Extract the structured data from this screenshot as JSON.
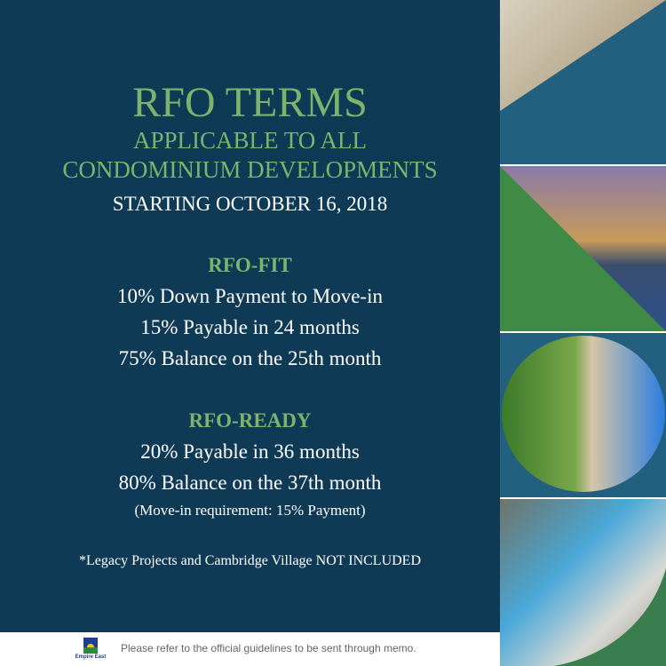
{
  "header": {
    "title": "RFO TERMS",
    "subtitle_1": "APPLICABLE TO ALL",
    "subtitle_2": "CONDOMINIUM DEVELOPMENTS",
    "start": "STARTING OCTOBER 16, 2018"
  },
  "rfo_fit": {
    "title": "RFO-FIT",
    "lines": [
      "10% Down Payment to Move-in",
      "15% Payable in 24 months",
      "75% Balance on the 25th month"
    ]
  },
  "rfo_ready": {
    "title": "RFO-READY",
    "lines": [
      "20% Payable in 36 months",
      "80% Balance on the 37th month"
    ],
    "note": "(Move-in requirement: 15% Payment)"
  },
  "disclaimer": "*Legacy Projects and Cambridge Village NOT INCLUDED",
  "footer": {
    "logo_text": "Empire East",
    "note": "Please refer to the official guidelines to be sent through memo."
  },
  "colors": {
    "navy": "#0f3a56",
    "green": "#7db46c",
    "panel_blue": "#236080",
    "panel_green": "#3f8a44"
  }
}
